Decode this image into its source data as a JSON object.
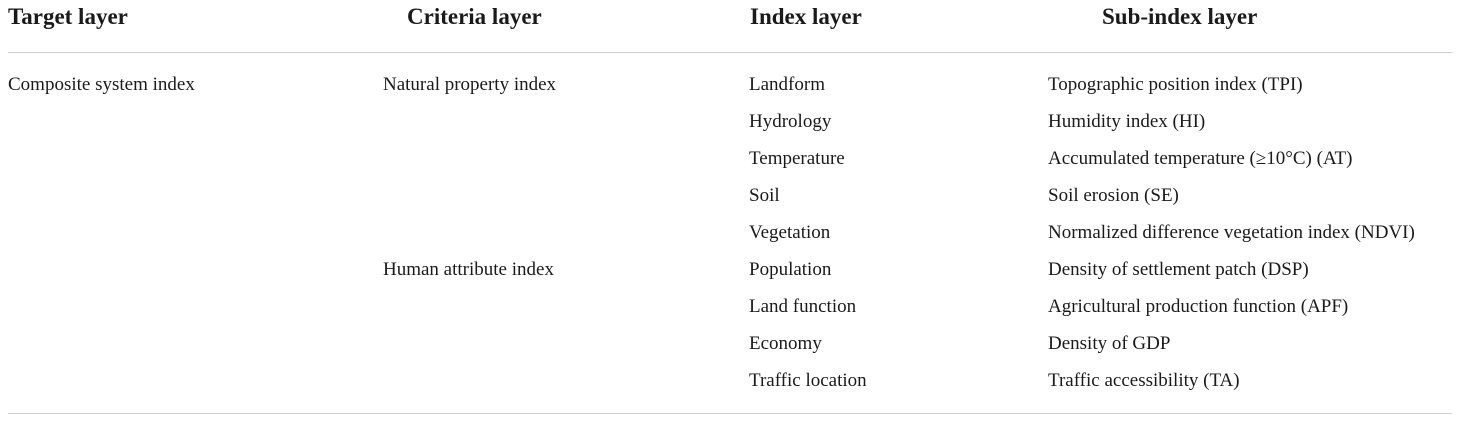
{
  "table": {
    "headers": [
      "Target layer",
      "Criteria layer",
      "Index layer",
      "Sub-index layer"
    ],
    "target": "Composite system index",
    "criteria": [
      "Natural property index",
      "Human attribute index"
    ],
    "index": [
      "Landform",
      "Hydrology",
      "Temperature",
      "Soil",
      "Vegetation",
      "Population",
      "Land function",
      "Economy",
      "Traffic location"
    ],
    "subindex": [
      "Topographic position index (TPI)",
      "Humidity index (HI)",
      "Accumulated temperature (≥10°C) (AT)",
      "Soil erosion (SE)",
      "Normalized difference vegetation index (NDVI)",
      "Density of settlement patch (DSP)",
      "Agricultural production function (APF)",
      "Density of GDP",
      "Traffic accessibility (TA)"
    ]
  }
}
